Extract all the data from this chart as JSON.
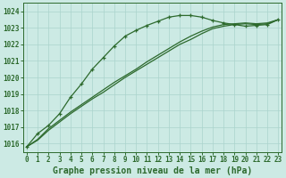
{
  "title": "Graphe pression niveau de la mer (hPa)",
  "bg_color": "#cceae4",
  "grid_color": "#aad4cc",
  "line_color": "#2d6a2d",
  "xlim_min": -0.3,
  "xlim_max": 23.3,
  "ylim_min": 1015.5,
  "ylim_max": 1024.5,
  "yticks": [
    1016,
    1017,
    1018,
    1019,
    1020,
    1021,
    1022,
    1023,
    1024
  ],
  "xticks": [
    0,
    1,
    2,
    3,
    4,
    5,
    6,
    7,
    8,
    9,
    10,
    11,
    12,
    13,
    14,
    15,
    16,
    17,
    18,
    19,
    20,
    21,
    22,
    23
  ],
  "line1_x": [
    0,
    1,
    2,
    3,
    4,
    5,
    6,
    7,
    8,
    9,
    10,
    11,
    12,
    13,
    14,
    15,
    16,
    17,
    18,
    19,
    20,
    21,
    22,
    23
  ],
  "line1_y": [
    1015.8,
    1016.6,
    1017.1,
    1017.8,
    1018.8,
    1019.6,
    1020.5,
    1021.2,
    1021.9,
    1022.5,
    1022.85,
    1023.15,
    1023.4,
    1023.65,
    1023.75,
    1023.75,
    1023.65,
    1023.45,
    1023.3,
    1023.2,
    1023.1,
    1023.15,
    1023.2,
    1023.5
  ],
  "line2_x": [
    0,
    1,
    2,
    3,
    4,
    5,
    6,
    7,
    8,
    9,
    10,
    11,
    12,
    13,
    14,
    15,
    16,
    17,
    18,
    19,
    20,
    21,
    22,
    23
  ],
  "line2_y": [
    1015.8,
    1016.2,
    1016.8,
    1017.3,
    1017.8,
    1018.25,
    1018.7,
    1019.1,
    1019.55,
    1020.0,
    1020.4,
    1020.8,
    1021.2,
    1021.6,
    1022.0,
    1022.3,
    1022.65,
    1022.95,
    1023.1,
    1023.2,
    1023.25,
    1023.2,
    1023.25,
    1023.5
  ],
  "line3_x": [
    0,
    1,
    2,
    3,
    4,
    5,
    6,
    7,
    8,
    9,
    10,
    11,
    12,
    13,
    14,
    15,
    16,
    17,
    18,
    19,
    20,
    21,
    22,
    23
  ],
  "line3_y": [
    1015.8,
    1016.25,
    1016.9,
    1017.4,
    1017.9,
    1018.35,
    1018.8,
    1019.25,
    1019.7,
    1020.1,
    1020.5,
    1020.95,
    1021.35,
    1021.75,
    1022.15,
    1022.5,
    1022.8,
    1023.05,
    1023.2,
    1023.25,
    1023.3,
    1023.25,
    1023.3,
    1023.5
  ],
  "tick_fontsize": 5.5,
  "xlabel_fontsize": 7.0,
  "linewidth": 0.9,
  "marker_size": 3.5,
  "marker_lw": 0.9
}
